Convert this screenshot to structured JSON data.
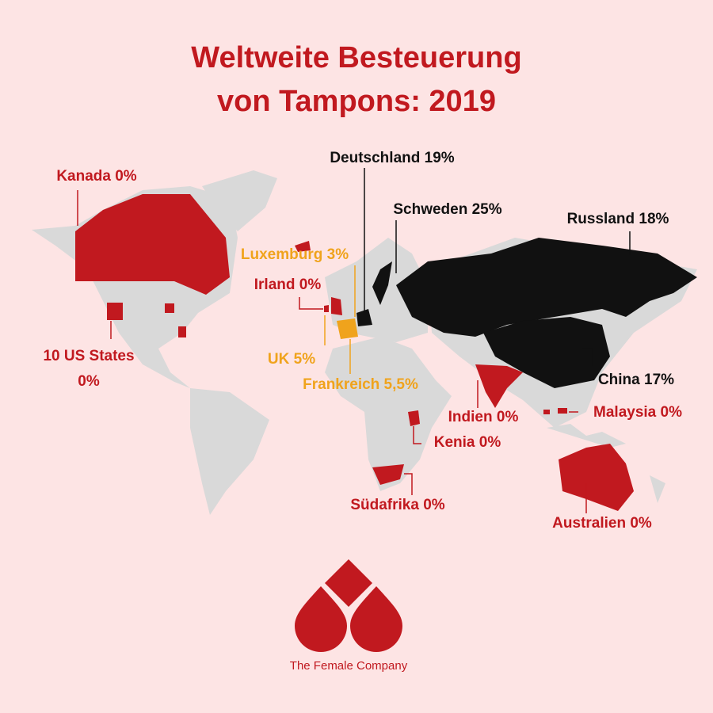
{
  "header": {
    "title": [
      "Weltweite Besteuerung",
      "von Tampons: 2019"
    ]
  },
  "zero_tax": [
    "Kanada 0%",
    [
      "10 US States",
      "0%"
    ],
    "Irland 0%",
    "Indien 0%",
    "Kenia 0%",
    "Malaysia 0%",
    "Südafrika 0%",
    "Australien 0%"
  ],
  "reduced_tax": [
    "Luxemburg 3%",
    "UK 5%",
    "Frankreich 5,5%"
  ],
  "full_tax": [
    "Deutschland 19%",
    "Schweden 25%",
    "Russland 18%",
    "China 17%"
  ],
  "brand": "The Female Company"
}
